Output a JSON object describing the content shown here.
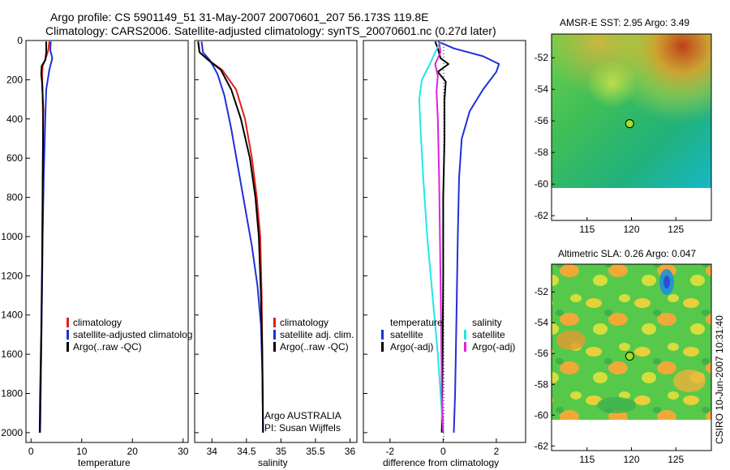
{
  "header": {
    "title_line1": "Argo profile: CS 5901149_51 31-May-2007 20070601_207 56.173S 119.8E",
    "title_line2": "Climatology: CARS2006. Satellite-adjusted climatology: synTS_20070601.nc (0.27d later)"
  },
  "colors": {
    "climatology": "#e0201a",
    "satellite": "#1f30d8",
    "argo": "#000000",
    "temp_diff_satellite": "#22e6e6",
    "sal_diff_satellite": "#e020e0",
    "float_marker": "#9ee02a"
  },
  "chart_data": [
    {
      "type": "line",
      "id": "temperature_panel",
      "xlabel": "temperature",
      "ylabel": "",
      "xlim": [
        -1,
        31
      ],
      "ylim": [
        2050,
        0
      ],
      "xticks": [
        "0",
        "10",
        "20",
        "30"
      ],
      "yticks": [
        "0",
        "200",
        "400",
        "600",
        "800",
        "1000",
        "1200",
        "1400",
        "1600",
        "1800",
        "2000"
      ],
      "legend": {
        "placement": "lower-right",
        "entries": [
          {
            "label": "climatology",
            "color_key": "climatology"
          },
          {
            "label": "satellite-adjusted climatolog",
            "color_key": "satellite"
          },
          {
            "label": "Argo(..raw -QC)",
            "color_key": "argo"
          }
        ]
      },
      "series": [
        {
          "name": "climatology",
          "color_key": "climatology",
          "points": [
            [
              3.6,
              5
            ],
            [
              3.4,
              50
            ],
            [
              2.9,
              90
            ],
            [
              2.3,
              130
            ],
            [
              2.2,
              180
            ],
            [
              2.3,
              300
            ],
            [
              2.4,
              500
            ],
            [
              2.3,
              800
            ],
            [
              2.2,
              1200
            ],
            [
              2.0,
              1600
            ],
            [
              1.8,
              2000
            ]
          ]
        },
        {
          "name": "satellite-adjusted climatolog",
          "color_key": "satellite",
          "points": [
            [
              3.9,
              5
            ],
            [
              3.8,
              50
            ],
            [
              4.2,
              90
            ],
            [
              3.6,
              150
            ],
            [
              3.0,
              250
            ],
            [
              2.8,
              400
            ],
            [
              2.5,
              700
            ],
            [
              2.3,
              1000
            ],
            [
              2.1,
              1400
            ],
            [
              1.9,
              1800
            ],
            [
              1.8,
              2000
            ]
          ]
        },
        {
          "name": "Argo(..raw -QC)",
          "color_key": "argo",
          "points": [
            [
              3.0,
              5
            ],
            [
              3.0,
              60
            ],
            [
              2.8,
              100
            ],
            [
              2.1,
              130
            ],
            [
              2.0,
              170
            ],
            [
              2.2,
              220
            ],
            [
              2.4,
              350
            ],
            [
              2.3,
              700
            ],
            [
              2.2,
              1100
            ],
            [
              2.0,
              1500
            ],
            [
              1.8,
              1800
            ],
            [
              1.7,
              2000
            ]
          ]
        }
      ]
    },
    {
      "type": "line",
      "id": "salinity_panel",
      "xlabel": "salinity",
      "ylabel": "",
      "xlim": [
        33.75,
        36.1
      ],
      "ylim": [
        2050,
        0
      ],
      "xticks": [
        "34",
        "34.5",
        "35",
        "35.5",
        "36"
      ],
      "legend": {
        "placement": "lower-right",
        "entries": [
          {
            "label": "climatology",
            "color_key": "climatology"
          },
          {
            "label": "satellite adj. clim.",
            "color_key": "satellite"
          },
          {
            "label": "Argo(..raw -QC)",
            "color_key": "argo"
          }
        ]
      },
      "annotation": {
        "line1": "Argo AUSTRALIA",
        "line2": "PI: Susan Wijffels"
      },
      "series": [
        {
          "name": "climatology",
          "color_key": "climatology",
          "points": [
            [
              33.8,
              5
            ],
            [
              33.82,
              60
            ],
            [
              33.95,
              100
            ],
            [
              34.15,
              150
            ],
            [
              34.35,
              250
            ],
            [
              34.48,
              400
            ],
            [
              34.58,
              600
            ],
            [
              34.65,
              800
            ],
            [
              34.7,
              1000
            ],
            [
              34.72,
              1300
            ],
            [
              34.73,
              1600
            ],
            [
              34.74,
              2000
            ]
          ]
        },
        {
          "name": "satellite adj. clim.",
          "color_key": "satellite",
          "points": [
            [
              33.85,
              5
            ],
            [
              33.87,
              60
            ],
            [
              33.97,
              100
            ],
            [
              34.08,
              170
            ],
            [
              34.18,
              280
            ],
            [
              34.28,
              450
            ],
            [
              34.38,
              650
            ],
            [
              34.48,
              850
            ],
            [
              34.58,
              1050
            ],
            [
              34.66,
              1250
            ],
            [
              34.71,
              1450
            ],
            [
              34.73,
              1700
            ],
            [
              34.74,
              2000
            ]
          ]
        },
        {
          "name": "Argo(..raw -QC)",
          "color_key": "argo",
          "points": [
            [
              33.8,
              5
            ],
            [
              33.82,
              60
            ],
            [
              33.95,
              100
            ],
            [
              34.13,
              150
            ],
            [
              34.28,
              250
            ],
            [
              34.42,
              400
            ],
            [
              34.55,
              600
            ],
            [
              34.63,
              800
            ],
            [
              34.68,
              1000
            ],
            [
              34.71,
              1300
            ],
            [
              34.73,
              1600
            ],
            [
              34.74,
              2000
            ]
          ]
        }
      ]
    },
    {
      "type": "line",
      "id": "difference_panel",
      "xlabel": "difference from climatology",
      "ylabel": "",
      "xlim": [
        -3,
        3.1
      ],
      "ylim": [
        2050,
        0
      ],
      "xticks": [
        "-2",
        "0",
        "2"
      ],
      "legend": {
        "placement": "lower-center",
        "groups": [
          {
            "title": "temperature",
            "entries": [
              {
                "label": "satellite",
                "color_key": "satellite"
              },
              {
                "label": "Argo(-adj)",
                "color_key": "argo"
              }
            ]
          },
          {
            "title": "salinity",
            "entries": [
              {
                "label": "satellite",
                "color_key": "temp_diff_satellite"
              },
              {
                "label": "Argo(-adj)",
                "color_key": "sal_diff_satellite"
              }
            ]
          }
        ]
      },
      "series": [
        {
          "name": "temperature satellite",
          "color_key": "satellite",
          "points": [
            [
              -0.2,
              5
            ],
            [
              0.4,
              40
            ],
            [
              1.5,
              80
            ],
            [
              2.1,
              120
            ],
            [
              2.0,
              160
            ],
            [
              1.5,
              250
            ],
            [
              1.0,
              360
            ],
            [
              0.7,
              500
            ],
            [
              0.6,
              700
            ],
            [
              0.55,
              1000
            ],
            [
              0.5,
              1400
            ],
            [
              0.45,
              1800
            ],
            [
              0.4,
              2000
            ]
          ]
        },
        {
          "name": "temperature Argo(-adj)",
          "color_key": "argo",
          "points": [
            [
              -0.3,
              5
            ],
            [
              -0.2,
              40
            ],
            [
              -0.1,
              90
            ],
            [
              0.2,
              120
            ],
            [
              -0.2,
              160
            ],
            [
              0.1,
              210
            ],
            [
              0.05,
              300
            ],
            [
              0.05,
              500
            ],
            [
              0.0,
              800
            ],
            [
              0.0,
              1200
            ],
            [
              -0.02,
              1600
            ],
            [
              -0.05,
              2000
            ]
          ]
        },
        {
          "name": "salinity satellite",
          "color_key": "temp_diff_satellite",
          "points": [
            [
              -0.1,
              5
            ],
            [
              -0.3,
              60
            ],
            [
              -0.5,
              120
            ],
            [
              -0.8,
              200
            ],
            [
              -0.9,
              300
            ],
            [
              -0.85,
              450
            ],
            [
              -0.75,
              700
            ],
            [
              -0.6,
              1000
            ],
            [
              -0.4,
              1300
            ],
            [
              -0.2,
              1600
            ],
            [
              -0.1,
              1800
            ],
            [
              0.0,
              2000
            ]
          ]
        },
        {
          "name": "salinity Argo(-adj)",
          "color_key": "sal_diff_satellite",
          "points": [
            [
              -0.15,
              5
            ],
            [
              -0.1,
              60
            ],
            [
              -0.3,
              120
            ],
            [
              -0.2,
              180
            ],
            [
              -0.25,
              260
            ],
            [
              -0.2,
              400
            ],
            [
              -0.15,
              700
            ],
            [
              -0.12,
              1000
            ],
            [
              -0.08,
              1400
            ],
            [
              -0.05,
              1800
            ],
            [
              0.0,
              2000
            ]
          ]
        }
      ]
    },
    {
      "type": "heatmap",
      "id": "sst_map",
      "title": "AMSR-E SST: 2.95 Argo: 3.49",
      "xlim": [
        111,
        129
      ],
      "ylim": [
        -62.3,
        -50.5
      ],
      "xticks": [
        "115",
        "120",
        "125"
      ],
      "yticks": [
        "-52",
        "-54",
        "-56",
        "-58",
        "-60",
        "-62"
      ],
      "data_extent": {
        "lat_min": -60.1,
        "lat_max": -50.5
      },
      "float_position": {
        "lon": 119.8,
        "lat": -56.173
      }
    },
    {
      "type": "heatmap",
      "id": "sla_map",
      "title": "Altimetric SLA: 0.26 Argo: 0.047",
      "xlim": [
        111,
        129
      ],
      "ylim": [
        -62.3,
        -50.2
      ],
      "xticks": [
        "115",
        "120",
        "125"
      ],
      "yticks": [
        "-52",
        "-54",
        "-56",
        "-58",
        "-60",
        "-62"
      ],
      "data_extent": {
        "lat_min": -60.1,
        "lat_max": -50.2
      },
      "float_position": {
        "lon": 119.8,
        "lat": -56.173
      }
    }
  ],
  "footer": {
    "stamp": "CSIRO 10-Jun-2007 10:31:40"
  }
}
